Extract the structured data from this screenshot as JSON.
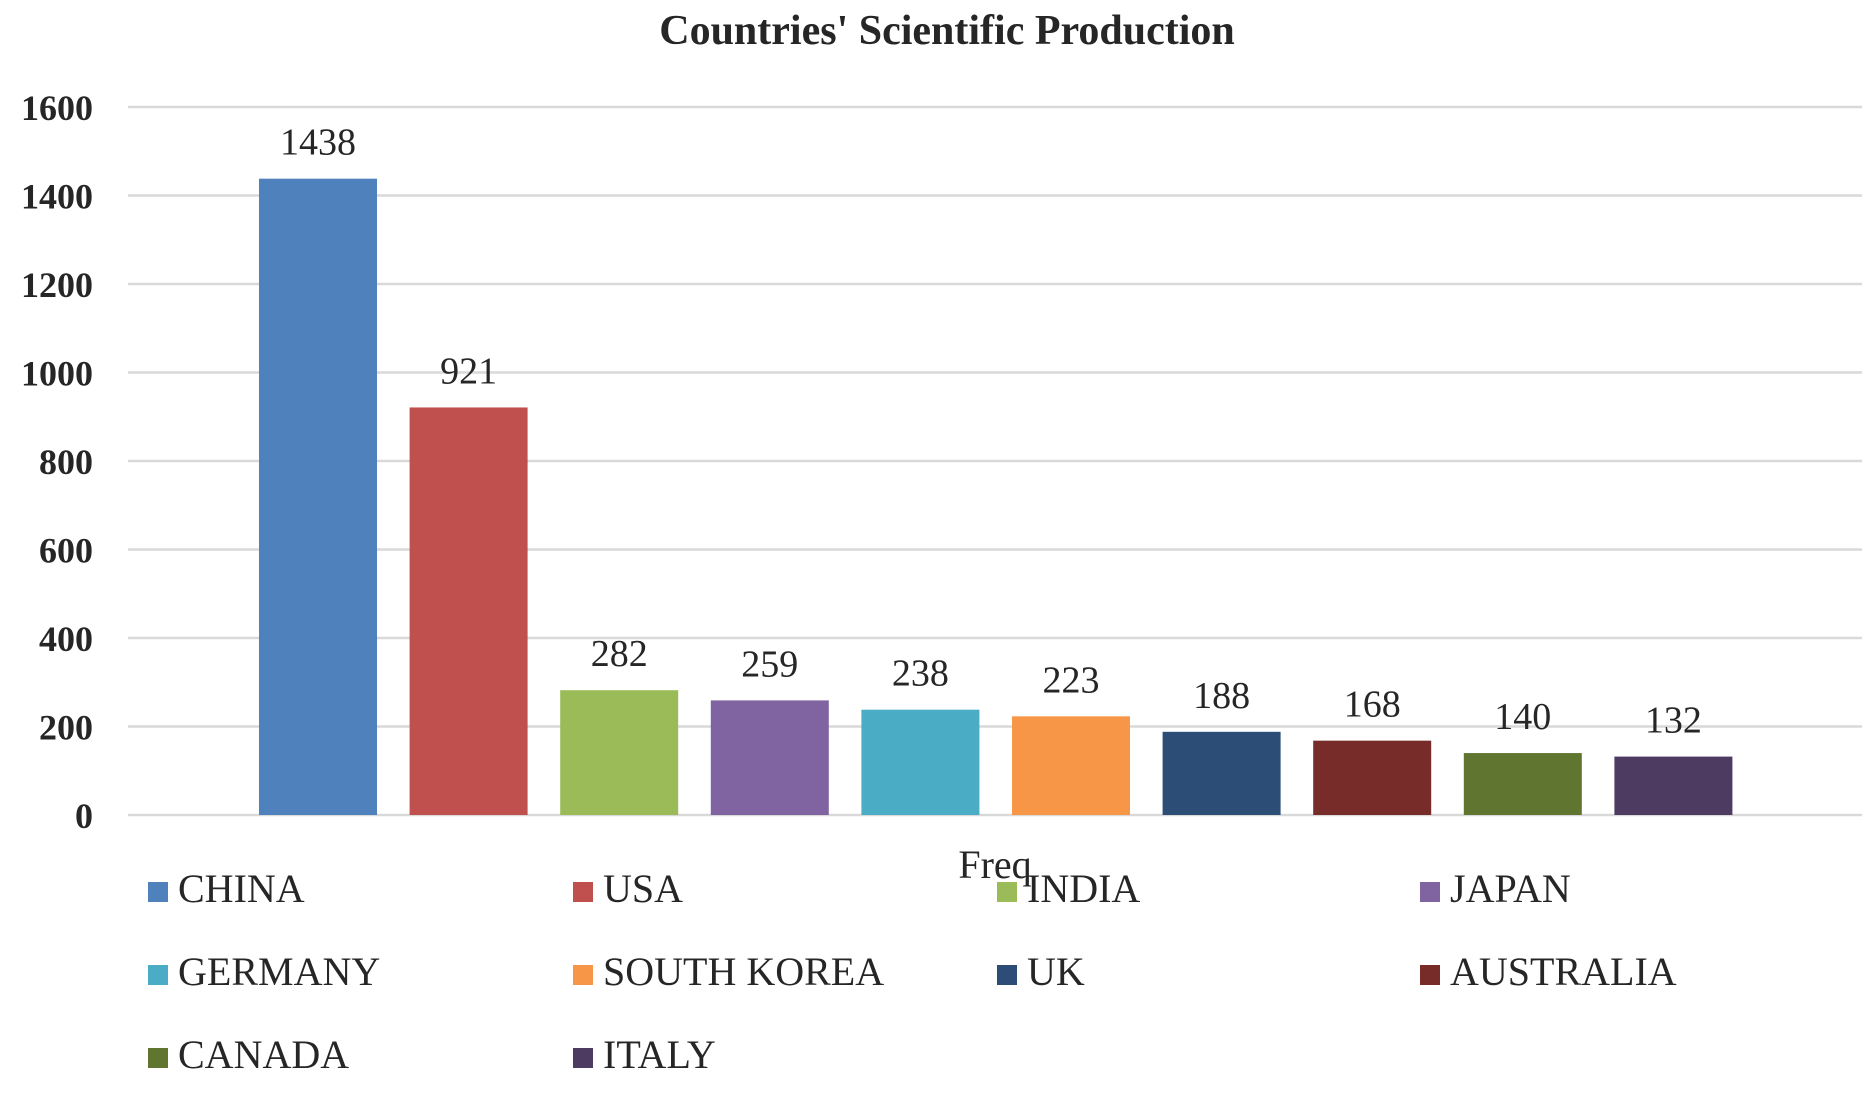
{
  "chart_data": {
    "type": "bar",
    "title": "Countries' Scientific Production",
    "xlabel": "Freq",
    "ylabel": "",
    "ylim": [
      0,
      1600
    ],
    "yticks": [
      0,
      200,
      400,
      600,
      800,
      1000,
      1200,
      1400,
      1600
    ],
    "grid": true,
    "legend_position": "bottom",
    "series": [
      {
        "name": "CHINA",
        "value": 1438,
        "color": "#4F81BD"
      },
      {
        "name": "USA",
        "value": 921,
        "color": "#C0504D"
      },
      {
        "name": "INDIA",
        "value": 282,
        "color": "#9BBB59"
      },
      {
        "name": "JAPAN",
        "value": 259,
        "color": "#8064A2"
      },
      {
        "name": "GERMANY",
        "value": 238,
        "color": "#4BACC6"
      },
      {
        "name": "SOUTH KOREA",
        "value": 223,
        "color": "#F79646"
      },
      {
        "name": "UK",
        "value": 188,
        "color": "#2C4D75"
      },
      {
        "name": "AUSTRALIA",
        "value": 168,
        "color": "#772C2A"
      },
      {
        "name": "CANADA",
        "value": 140,
        "color": "#5F7530"
      },
      {
        "name": "ITALY",
        "value": 132,
        "color": "#4D3B62"
      }
    ]
  }
}
